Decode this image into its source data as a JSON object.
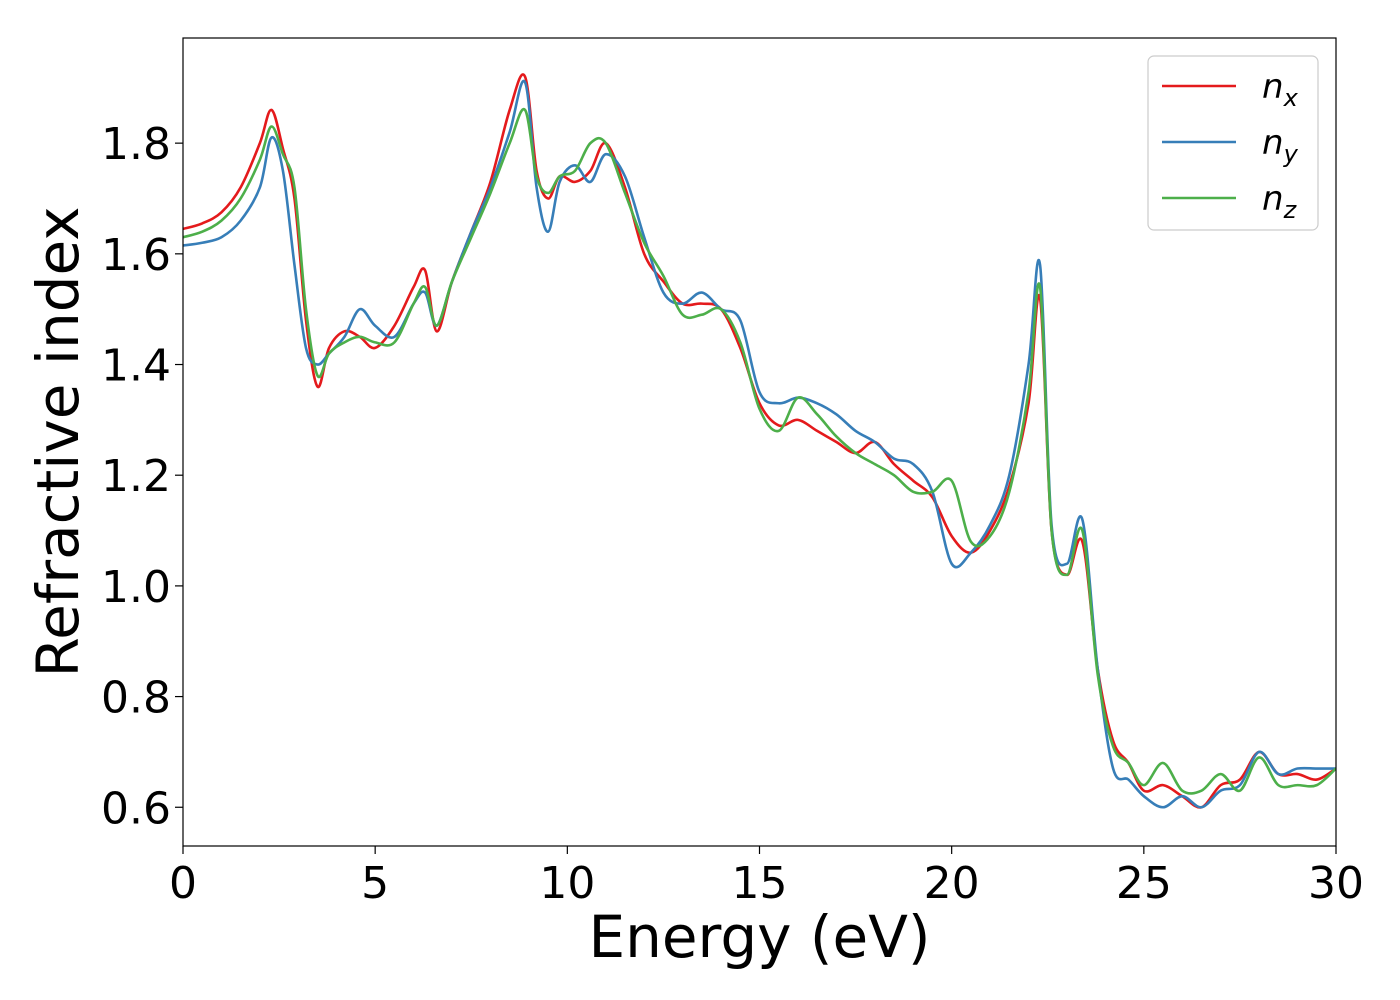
{
  "chart_data": {
    "type": "line",
    "xlabel": "Energy (eV)",
    "ylabel": "Refractive index",
    "xlim": [
      0,
      30
    ],
    "ylim": [
      0.53,
      1.99
    ],
    "xticks": [
      0,
      5,
      10,
      15,
      20,
      25,
      30
    ],
    "yticks": [
      0.6,
      0.8,
      1.0,
      1.2,
      1.4,
      1.6,
      1.8
    ],
    "grid": false,
    "legend_position": "top-right",
    "series": [
      {
        "name": "n",
        "subscript": "x",
        "color": "#e41a1c",
        "x": [
          0,
          0.5,
          1.0,
          1.5,
          2.0,
          2.3,
          2.6,
          2.9,
          3.2,
          3.5,
          3.8,
          4.2,
          4.6,
          5.0,
          5.5,
          6.0,
          6.3,
          6.6,
          7.0,
          7.5,
          8.0,
          8.5,
          8.9,
          9.2,
          9.5,
          9.8,
          10.2,
          10.6,
          11.0,
          11.5,
          12.0,
          12.5,
          13.0,
          13.5,
          14.0,
          14.5,
          15.0,
          15.5,
          16.0,
          16.5,
          17.0,
          17.5,
          18.0,
          18.5,
          19.0,
          19.5,
          20.0,
          20.5,
          21.0,
          21.5,
          22.0,
          22.3,
          22.6,
          23.0,
          23.4,
          23.8,
          24.2,
          24.6,
          25.0,
          25.5,
          26.0,
          26.5,
          27.0,
          27.5,
          28.0,
          28.5,
          29.0,
          29.5,
          30.0
        ],
        "y": [
          1.645,
          1.655,
          1.675,
          1.72,
          1.8,
          1.86,
          1.79,
          1.7,
          1.48,
          1.36,
          1.43,
          1.46,
          1.45,
          1.43,
          1.47,
          1.54,
          1.57,
          1.46,
          1.55,
          1.64,
          1.73,
          1.86,
          1.92,
          1.75,
          1.7,
          1.74,
          1.73,
          1.75,
          1.8,
          1.72,
          1.6,
          1.55,
          1.51,
          1.51,
          1.5,
          1.43,
          1.33,
          1.29,
          1.3,
          1.28,
          1.26,
          1.24,
          1.26,
          1.22,
          1.19,
          1.16,
          1.09,
          1.06,
          1.1,
          1.18,
          1.33,
          1.52,
          1.1,
          1.02,
          1.08,
          0.85,
          0.72,
          0.68,
          0.63,
          0.64,
          0.62,
          0.6,
          0.64,
          0.65,
          0.7,
          0.66,
          0.66,
          0.65,
          0.67
        ]
      },
      {
        "name": "n",
        "subscript": "y",
        "color": "#377eb8",
        "x": [
          0,
          0.5,
          1.0,
          1.5,
          2.0,
          2.3,
          2.6,
          2.9,
          3.2,
          3.5,
          3.8,
          4.2,
          4.6,
          5.0,
          5.5,
          6.0,
          6.3,
          6.6,
          7.0,
          7.5,
          8.0,
          8.5,
          8.9,
          9.2,
          9.5,
          9.8,
          10.2,
          10.6,
          11.0,
          11.5,
          12.0,
          12.5,
          13.0,
          13.5,
          14.0,
          14.5,
          15.0,
          15.5,
          16.0,
          16.5,
          17.0,
          17.5,
          18.0,
          18.5,
          19.0,
          19.5,
          20.0,
          20.5,
          21.0,
          21.5,
          22.0,
          22.3,
          22.6,
          23.0,
          23.4,
          23.8,
          24.2,
          24.6,
          25.0,
          25.5,
          26.0,
          26.5,
          27.0,
          27.5,
          28.0,
          28.5,
          29.0,
          29.5,
          30.0
        ],
        "y": [
          1.615,
          1.62,
          1.63,
          1.66,
          1.72,
          1.81,
          1.75,
          1.58,
          1.43,
          1.4,
          1.42,
          1.45,
          1.5,
          1.47,
          1.45,
          1.51,
          1.53,
          1.47,
          1.55,
          1.64,
          1.72,
          1.82,
          1.91,
          1.72,
          1.64,
          1.73,
          1.76,
          1.73,
          1.78,
          1.74,
          1.63,
          1.53,
          1.51,
          1.53,
          1.5,
          1.48,
          1.35,
          1.33,
          1.34,
          1.33,
          1.31,
          1.28,
          1.26,
          1.23,
          1.22,
          1.17,
          1.04,
          1.06,
          1.11,
          1.2,
          1.4,
          1.58,
          1.11,
          1.04,
          1.12,
          0.85,
          0.67,
          0.65,
          0.62,
          0.6,
          0.62,
          0.6,
          0.63,
          0.64,
          0.7,
          0.66,
          0.67,
          0.67,
          0.67
        ]
      },
      {
        "name": "n",
        "subscript": "z",
        "color": "#4daf4a",
        "x": [
          0,
          0.5,
          1.0,
          1.5,
          2.0,
          2.3,
          2.6,
          2.9,
          3.2,
          3.5,
          3.8,
          4.2,
          4.6,
          5.0,
          5.5,
          6.0,
          6.3,
          6.6,
          7.0,
          7.5,
          8.0,
          8.5,
          8.9,
          9.2,
          9.5,
          9.8,
          10.2,
          10.6,
          11.0,
          11.5,
          12.0,
          12.5,
          13.0,
          13.5,
          14.0,
          14.5,
          15.0,
          15.5,
          16.0,
          16.5,
          17.0,
          17.5,
          18.0,
          18.5,
          19.0,
          19.5,
          20.0,
          20.5,
          21.0,
          21.5,
          22.0,
          22.3,
          22.6,
          23.0,
          23.4,
          23.8,
          24.2,
          24.6,
          25.0,
          25.5,
          26.0,
          26.5,
          27.0,
          27.5,
          28.0,
          28.5,
          29.0,
          29.5,
          30.0
        ],
        "y": [
          1.63,
          1.64,
          1.66,
          1.7,
          1.77,
          1.83,
          1.78,
          1.72,
          1.5,
          1.38,
          1.42,
          1.44,
          1.45,
          1.44,
          1.44,
          1.51,
          1.54,
          1.47,
          1.55,
          1.63,
          1.71,
          1.8,
          1.86,
          1.74,
          1.71,
          1.74,
          1.75,
          1.8,
          1.8,
          1.71,
          1.62,
          1.56,
          1.49,
          1.49,
          1.5,
          1.44,
          1.32,
          1.28,
          1.34,
          1.31,
          1.27,
          1.24,
          1.22,
          1.2,
          1.17,
          1.17,
          1.19,
          1.08,
          1.09,
          1.17,
          1.35,
          1.54,
          1.1,
          1.02,
          1.1,
          0.84,
          0.71,
          0.68,
          0.64,
          0.68,
          0.63,
          0.63,
          0.66,
          0.63,
          0.69,
          0.64,
          0.64,
          0.64,
          0.67
        ]
      }
    ]
  }
}
